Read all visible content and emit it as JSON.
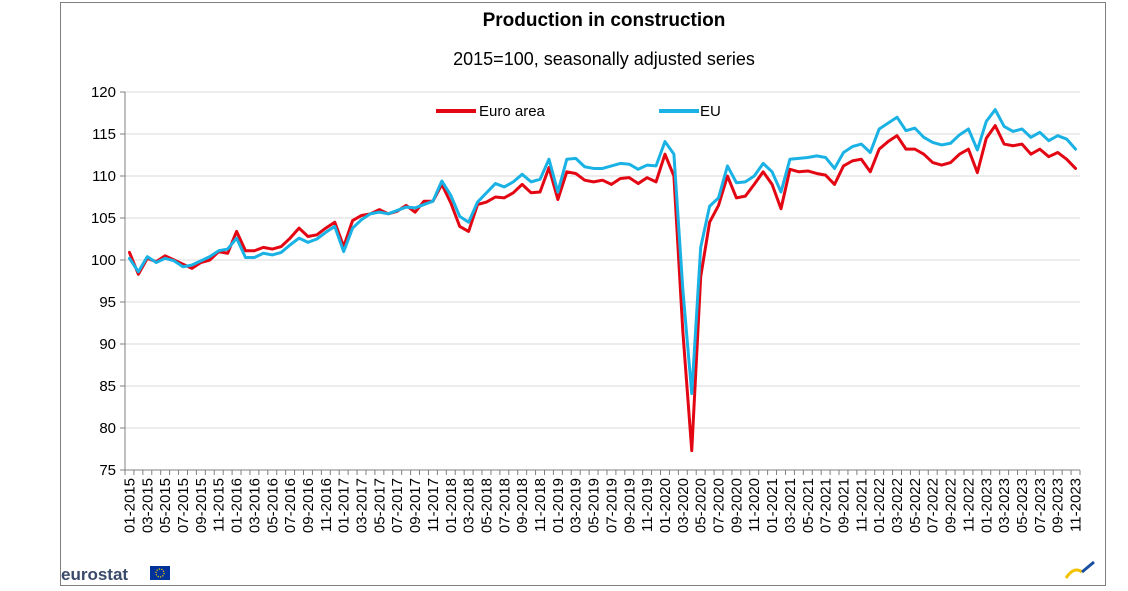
{
  "chart_data": {
    "type": "line",
    "title": "Production in construction",
    "subtitle": "2015=100, seasonally adjusted series",
    "ylim": [
      75,
      120
    ],
    "yticks": [
      75,
      80,
      85,
      90,
      95,
      100,
      105,
      110,
      115,
      120
    ],
    "x": [
      "01-2015",
      "02-2015",
      "03-2015",
      "04-2015",
      "05-2015",
      "06-2015",
      "07-2015",
      "08-2015",
      "09-2015",
      "10-2015",
      "11-2015",
      "12-2015",
      "01-2016",
      "02-2016",
      "03-2016",
      "04-2016",
      "05-2016",
      "06-2016",
      "07-2016",
      "08-2016",
      "09-2016",
      "10-2016",
      "11-2016",
      "12-2016",
      "01-2017",
      "02-2017",
      "03-2017",
      "04-2017",
      "05-2017",
      "06-2017",
      "07-2017",
      "08-2017",
      "09-2017",
      "10-2017",
      "11-2017",
      "12-2017",
      "01-2018",
      "02-2018",
      "03-2018",
      "04-2018",
      "05-2018",
      "06-2018",
      "07-2018",
      "08-2018",
      "09-2018",
      "10-2018",
      "11-2018",
      "12-2018",
      "01-2019",
      "02-2019",
      "03-2019",
      "04-2019",
      "05-2019",
      "06-2019",
      "07-2019",
      "08-2019",
      "09-2019",
      "10-2019",
      "11-2019",
      "12-2019",
      "01-2020",
      "02-2020",
      "03-2020",
      "04-2020",
      "05-2020",
      "06-2020",
      "07-2020",
      "08-2020",
      "09-2020",
      "10-2020",
      "11-2020",
      "12-2020",
      "01-2021",
      "02-2021",
      "03-2021",
      "04-2021",
      "05-2021",
      "06-2021",
      "07-2021",
      "08-2021",
      "09-2021",
      "10-2021",
      "11-2021",
      "12-2021",
      "01-2022",
      "02-2022",
      "03-2022",
      "04-2022",
      "05-2022",
      "06-2022",
      "07-2022",
      "08-2022",
      "09-2022",
      "10-2022",
      "11-2022",
      "12-2022",
      "01-2023",
      "02-2023",
      "03-2023",
      "04-2023",
      "05-2023",
      "06-2023",
      "07-2023",
      "08-2023",
      "09-2023",
      "10-2023",
      "11-2023"
    ],
    "xtick_labels": [
      "01-2015",
      "03-2015",
      "05-2015",
      "07-2015",
      "09-2015",
      "11-2015",
      "01-2016",
      "03-2016",
      "05-2016",
      "07-2016",
      "09-2016",
      "11-2016",
      "01-2017",
      "03-2017",
      "05-2017",
      "07-2017",
      "09-2017",
      "11-2017",
      "01-2018",
      "03-2018",
      "05-2018",
      "07-2018",
      "09-2018",
      "11-2018",
      "01-2019",
      "03-2019",
      "05-2019",
      "07-2019",
      "09-2019",
      "11-2019",
      "01-2020",
      "03-2020",
      "05-2020",
      "07-2020",
      "09-2020",
      "11-2020",
      "01-2021",
      "03-2021",
      "05-2021",
      "07-2021",
      "09-2021",
      "11-2021",
      "01-2022",
      "03-2022",
      "05-2022",
      "07-2022",
      "09-2022",
      "11-2022",
      "01-2023",
      "03-2023",
      "05-2023",
      "07-2023",
      "09-2023",
      "11-2023"
    ],
    "series": [
      {
        "name": "Euro area",
        "color": "#e30613",
        "values": [
          100.9,
          98.3,
          100.2,
          99.8,
          100.5,
          100.0,
          99.5,
          99.0,
          99.7,
          100.0,
          101.0,
          100.8,
          103.4,
          101.1,
          101.1,
          101.5,
          101.3,
          101.6,
          102.6,
          103.8,
          102.8,
          103.0,
          103.8,
          104.5,
          101.6,
          104.7,
          105.3,
          105.5,
          106.0,
          105.5,
          105.8,
          106.5,
          105.7,
          107.0,
          107.0,
          109.0,
          106.8,
          104.0,
          103.4,
          106.6,
          106.9,
          107.5,
          107.4,
          108.0,
          109.0,
          108.0,
          108.1,
          111.0,
          107.2,
          110.5,
          110.3,
          109.5,
          109.3,
          109.5,
          109.0,
          109.7,
          109.8,
          109.1,
          109.8,
          109.3,
          112.6,
          110.0,
          91.5,
          77.3,
          98.0,
          104.5,
          106.5,
          110.0,
          107.4,
          107.6,
          109.0,
          110.5,
          109.0,
          106.1,
          110.8,
          110.5,
          110.6,
          110.3,
          110.1,
          109.0,
          111.2,
          111.8,
          112.0,
          110.5,
          113.2,
          114.1,
          114.8,
          113.2,
          113.2,
          112.6,
          111.6,
          111.3,
          111.6,
          112.6,
          113.2,
          110.4,
          114.5,
          116.0,
          113.8,
          113.6,
          113.8,
          112.6,
          113.2,
          112.3,
          112.8,
          112.0,
          110.9
        ]
      },
      {
        "name": "EU",
        "color": "#1ab2e5",
        "values": [
          100.2,
          98.6,
          100.4,
          99.7,
          100.2,
          99.9,
          99.2,
          99.4,
          99.9,
          100.4,
          101.1,
          101.3,
          102.6,
          100.3,
          100.3,
          100.8,
          100.6,
          100.9,
          101.8,
          102.6,
          102.1,
          102.5,
          103.3,
          104.0,
          101.0,
          103.8,
          104.8,
          105.5,
          105.7,
          105.5,
          105.9,
          106.3,
          106.2,
          106.6,
          107.0,
          109.4,
          107.7,
          105.2,
          104.5,
          106.9,
          108.0,
          109.1,
          108.7,
          109.3,
          110.2,
          109.3,
          109.6,
          112.0,
          108.1,
          112.0,
          112.1,
          111.1,
          110.9,
          110.9,
          111.2,
          111.5,
          111.4,
          110.8,
          111.3,
          111.2,
          114.1,
          112.6,
          96.5,
          84.1,
          101.5,
          106.4,
          107.4,
          111.2,
          109.2,
          109.3,
          110.0,
          111.5,
          110.5,
          108.1,
          112.0,
          112.1,
          112.2,
          112.4,
          112.2,
          110.9,
          112.8,
          113.5,
          113.8,
          112.8,
          115.6,
          116.3,
          117.0,
          115.4,
          115.7,
          114.6,
          114.0,
          113.7,
          113.9,
          114.9,
          115.6,
          113.1,
          116.5,
          117.9,
          115.9,
          115.3,
          115.6,
          114.6,
          115.2,
          114.2,
          114.8,
          114.4,
          113.2
        ]
      }
    ],
    "grid": true,
    "legend_position": "top-center"
  },
  "logo": {
    "text": "eurostat"
  },
  "colors": {
    "axis": "#808080",
    "grid": "#d9d9d9"
  }
}
